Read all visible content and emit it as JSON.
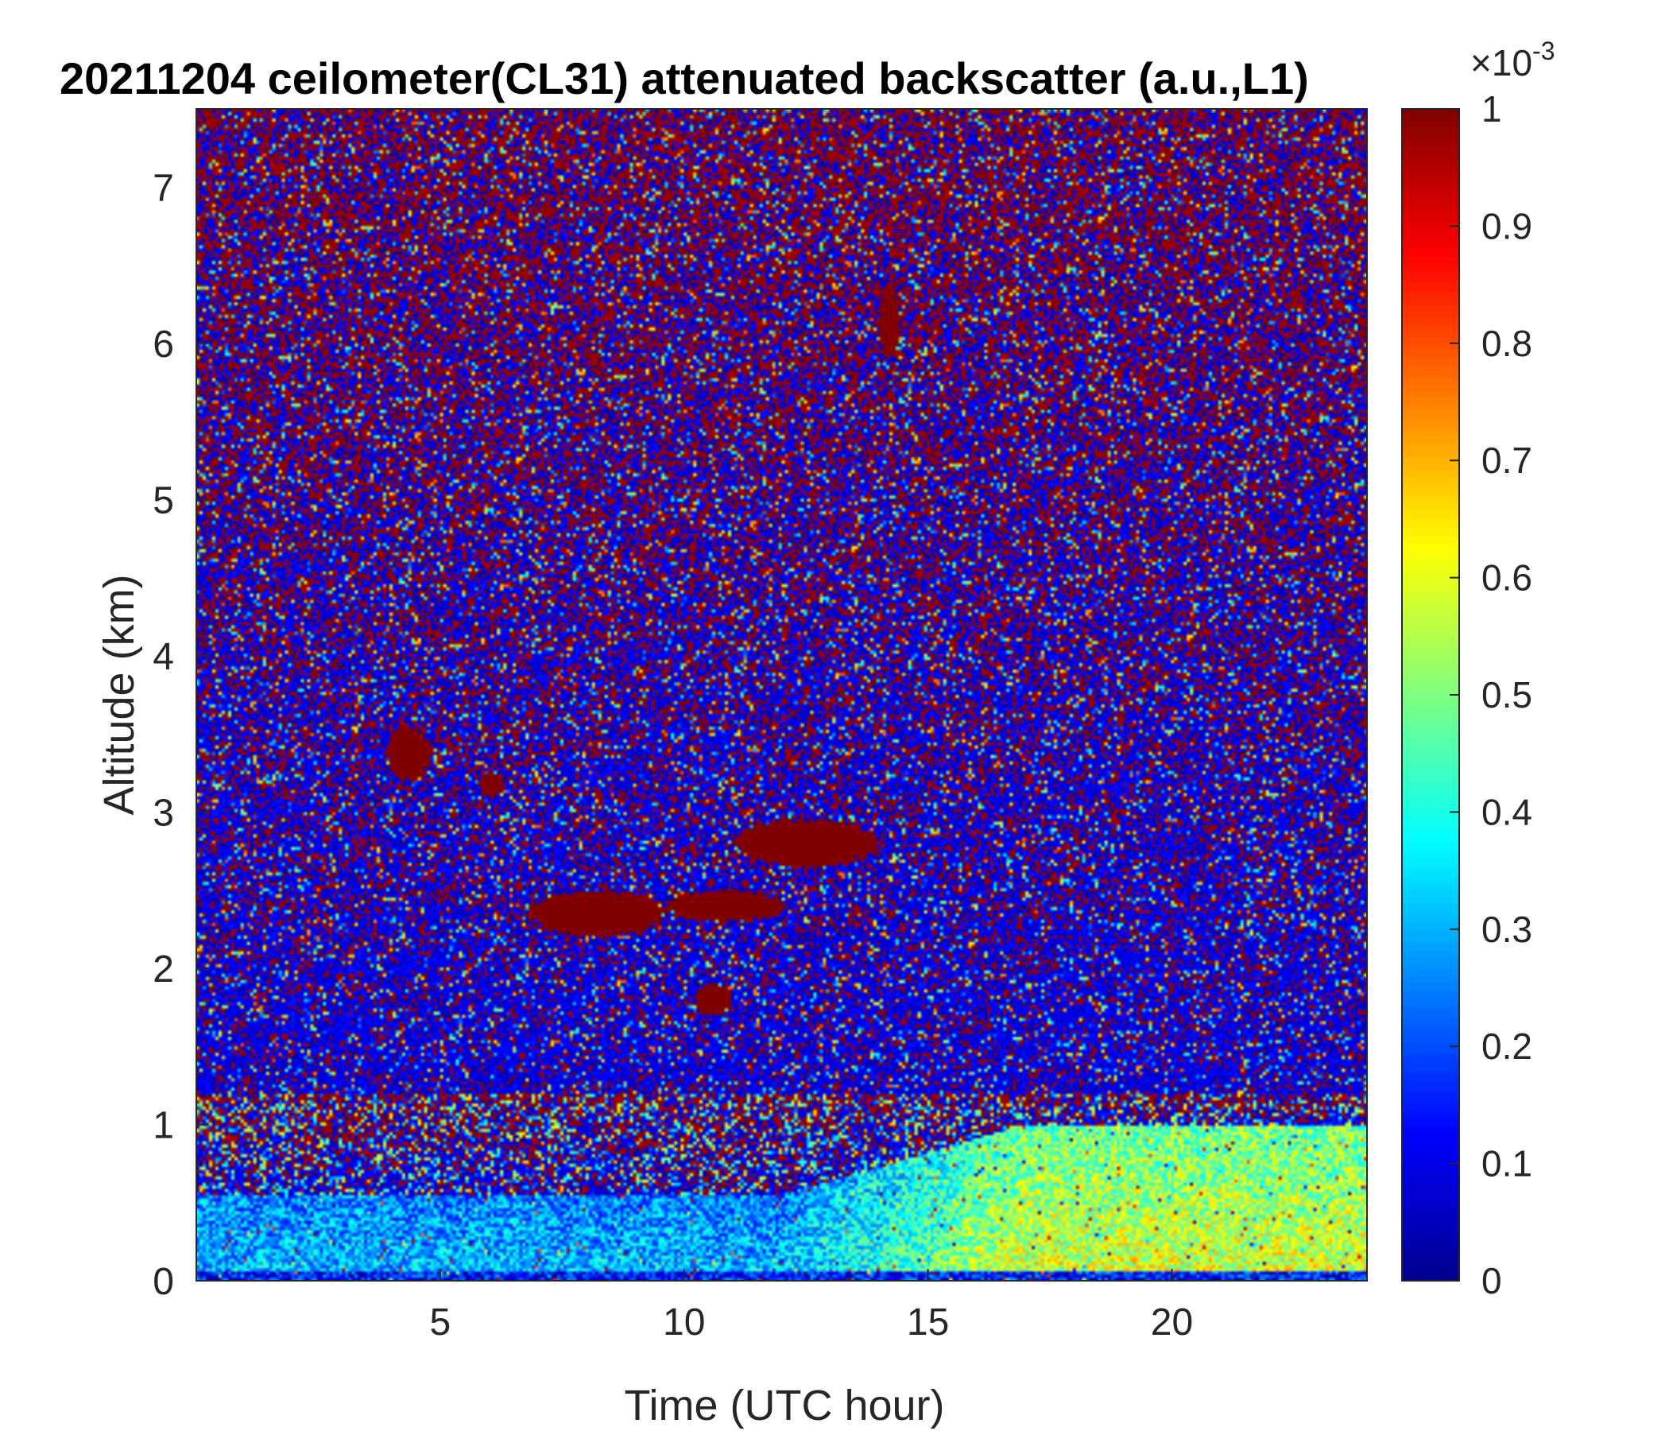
{
  "chart_data": {
    "type": "heatmap",
    "title": "20211204 ceilometer(CL31) attenuated backscatter (a.u.,L1)",
    "xlabel": "Time (UTC hour)",
    "ylabel": "Altitude (km)",
    "xlim": [
      0,
      24
    ],
    "ylim": [
      0,
      7.5
    ],
    "xticks": [
      5,
      10,
      15,
      20
    ],
    "yticks": [
      0,
      1,
      2,
      3,
      4,
      5,
      6,
      7
    ],
    "colormap": "jet",
    "colorbar": {
      "range": [
        0,
        1
      ],
      "ticks": [
        "0",
        "0.1",
        "0.2",
        "0.3",
        "0.4",
        "0.5",
        "0.6",
        "0.7",
        "0.8",
        "0.9",
        "1"
      ],
      "exponent_base": "×10",
      "exponent_power": "-3"
    },
    "features": [
      {
        "name": "cloud-1",
        "x": [
          3.9,
          4.8
        ],
        "y": [
          3.2,
          3.55
        ],
        "value": 1.0
      },
      {
        "name": "cloud-2",
        "x": [
          5.8,
          6.3
        ],
        "y": [
          3.1,
          3.25
        ],
        "value": 1.0
      },
      {
        "name": "cloud-3",
        "x": [
          6.8,
          9.6
        ],
        "y": [
          2.2,
          2.5
        ],
        "value": 1.0
      },
      {
        "name": "cloud-4",
        "x": [
          9.6,
          12.0
        ],
        "y": [
          2.3,
          2.5
        ],
        "value": 1.0
      },
      {
        "name": "cloud-5",
        "x": [
          11.0,
          14.0
        ],
        "y": [
          2.65,
          2.95
        ],
        "value": 1.0
      },
      {
        "name": "cloud-6",
        "x": [
          10.2,
          11.0
        ],
        "y": [
          1.7,
          1.9
        ],
        "value": 1.0
      },
      {
        "name": "cloud-7",
        "x": [
          14.0,
          14.4
        ],
        "y": [
          5.9,
          6.4
        ],
        "value": 1.0
      },
      {
        "name": "boundary-layer-aerosol",
        "x": [
          0,
          24
        ],
        "y": [
          0,
          1.0
        ],
        "value_range": [
          0.25,
          0.65
        ]
      }
    ]
  }
}
